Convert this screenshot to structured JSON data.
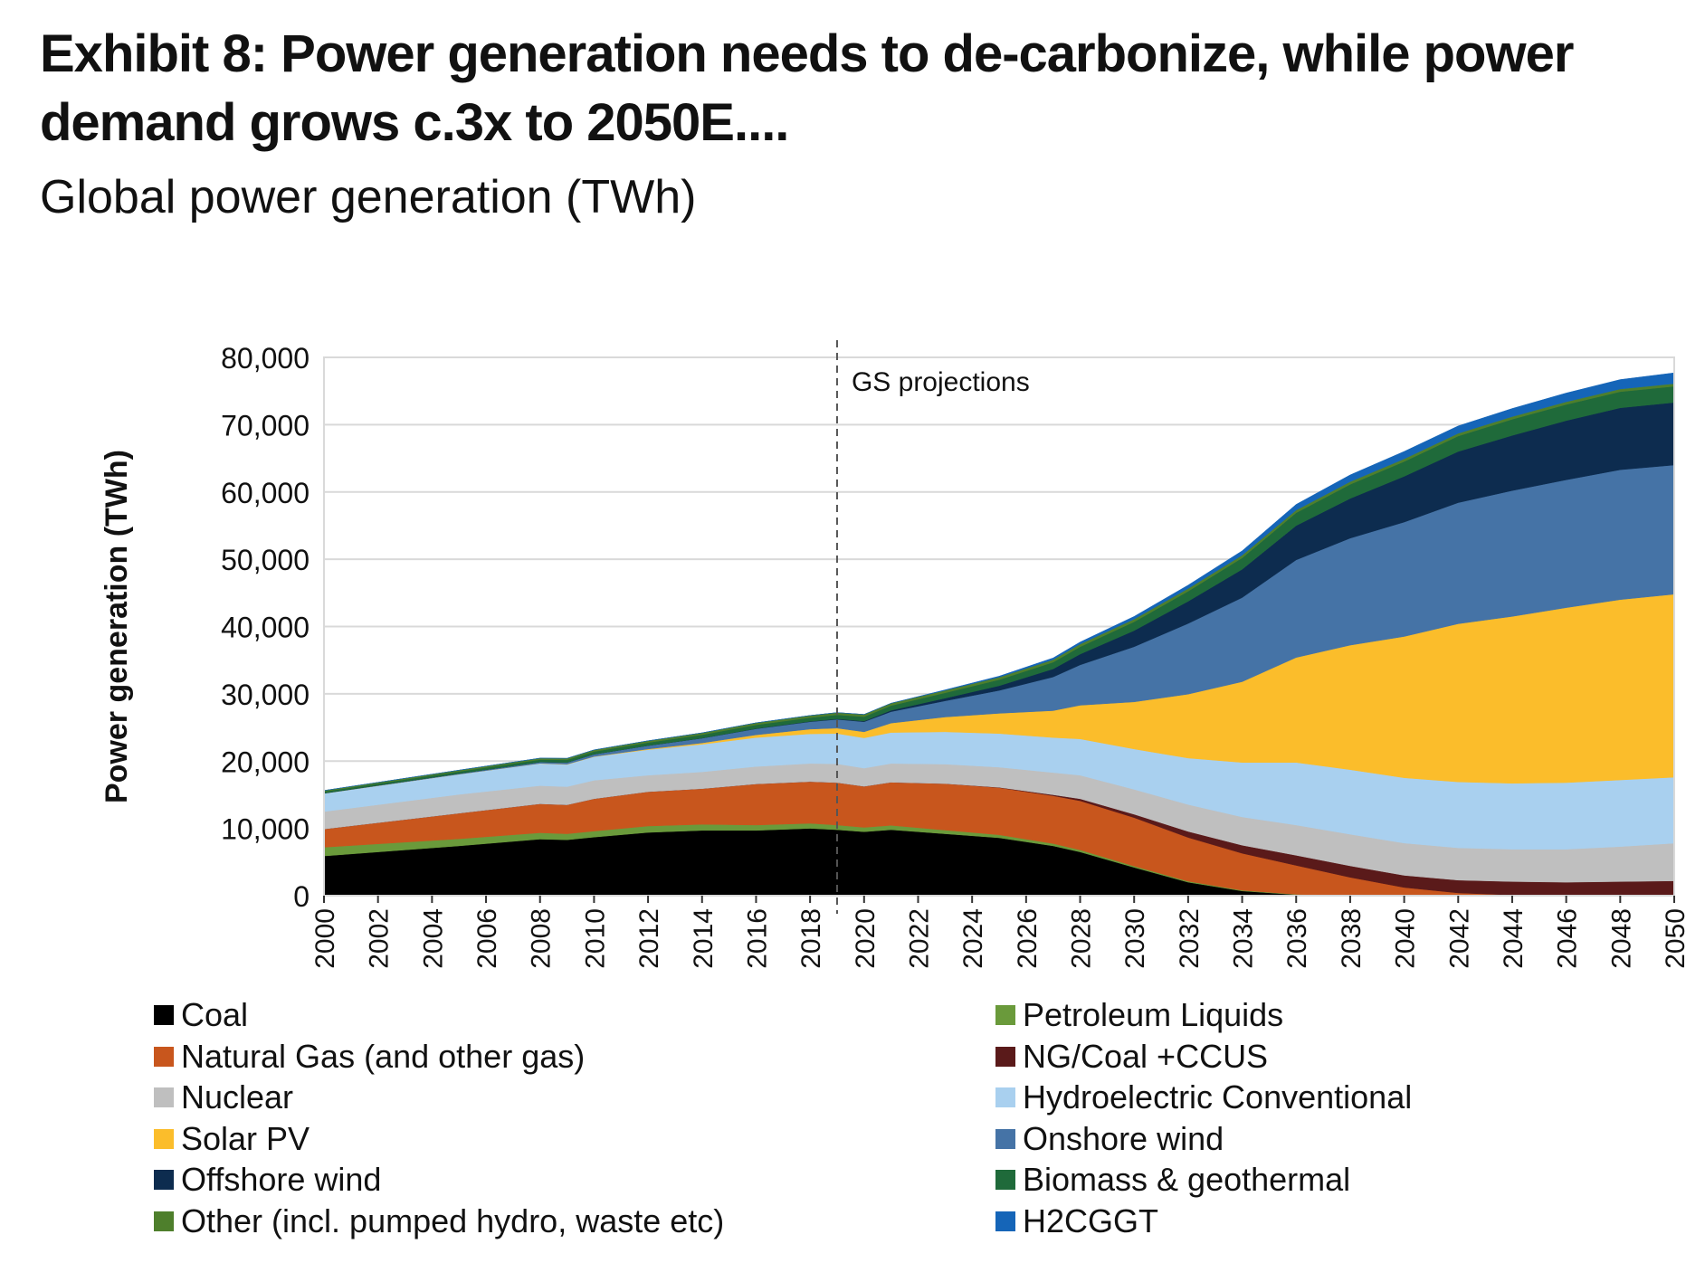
{
  "title": "Exhibit 8: Power generation needs to de-carbonize, while power demand grows c.3x to 2050E....",
  "subtitle": "Global power generation (TWh)",
  "chart_data": {
    "type": "area",
    "stacked": true,
    "ylabel": "Power generation (TWh)",
    "xlabel": "",
    "ylim": [
      0,
      80000
    ],
    "yticks": [
      0,
      10000,
      20000,
      30000,
      40000,
      50000,
      60000,
      70000,
      80000
    ],
    "ytick_labels": [
      "0",
      "10,000",
      "20,000",
      "30,000",
      "40,000",
      "50,000",
      "60,000",
      "70,000",
      "80,000"
    ],
    "xtick_labels": [
      "2000",
      "2002",
      "2004",
      "2006",
      "2008",
      "2010",
      "2012",
      "2014",
      "2016",
      "2018",
      "2020",
      "2022",
      "2024",
      "2026",
      "2028",
      "2030",
      "2032",
      "2034",
      "2036",
      "2038",
      "2040",
      "2042",
      "2044",
      "2046",
      "2048",
      "2050"
    ],
    "projection_start_year": 2019,
    "annotation": "GS projections",
    "grid": true,
    "legend_position": "bottom",
    "x": [
      2000,
      2005,
      2008,
      2009,
      2010,
      2012,
      2014,
      2016,
      2018,
      2019,
      2020,
      2021,
      2023,
      2025,
      2027,
      2028,
      2030,
      2032,
      2034,
      2036,
      2038,
      2040,
      2042,
      2044,
      2046,
      2048,
      2050
    ],
    "series": [
      {
        "name": "Coal",
        "color": "#000000",
        "values": [
          5900,
          7400,
          8400,
          8300,
          8700,
          9400,
          9700,
          9700,
          10000,
          9800,
          9500,
          9800,
          9200,
          8600,
          7400,
          6500,
          4200,
          2000,
          700,
          150,
          0,
          0,
          0,
          0,
          0,
          0,
          0
        ]
      },
      {
        "name": "Petroleum Liquids",
        "color": "#6a9a3b",
        "values": [
          1300,
          1050,
          950,
          900,
          900,
          950,
          900,
          800,
          750,
          700,
          650,
          650,
          550,
          450,
          350,
          300,
          200,
          150,
          100,
          50,
          30,
          20,
          10,
          0,
          0,
          0,
          0
        ]
      },
      {
        "name": "Natural Gas (and other gas)",
        "color": "#c8561d",
        "values": [
          2700,
          3800,
          4300,
          4300,
          4800,
          5100,
          5300,
          6100,
          6200,
          6300,
          6100,
          6400,
          6900,
          7000,
          7100,
          7300,
          7200,
          6500,
          5500,
          4300,
          2700,
          1200,
          400,
          100,
          0,
          0,
          0
        ]
      },
      {
        "name": "NG/Coal +CCUS",
        "color": "#5a1a1a",
        "values": [
          0,
          0,
          0,
          0,
          0,
          0,
          0,
          0,
          0,
          0,
          0,
          0,
          0,
          50,
          150,
          300,
          500,
          900,
          1200,
          1500,
          1700,
          1800,
          1900,
          2000,
          2000,
          2100,
          2200
        ]
      },
      {
        "name": "Nuclear",
        "color": "#bfbfbf",
        "values": [
          2600,
          2800,
          2700,
          2700,
          2750,
          2450,
          2500,
          2600,
          2700,
          2800,
          2700,
          2800,
          2900,
          3000,
          3300,
          3500,
          3700,
          4000,
          4200,
          4500,
          4700,
          4800,
          4800,
          4800,
          4900,
          5200,
          5600
        ]
      },
      {
        "name": "Hydroelectric Conventional",
        "color": "#a9d0ef",
        "values": [
          2700,
          3000,
          3300,
          3300,
          3500,
          3800,
          4100,
          4300,
          4400,
          4500,
          4500,
          4600,
          4800,
          5000,
          5200,
          5400,
          6000,
          6900,
          8100,
          9300,
          9600,
          9700,
          9800,
          9800,
          9900,
          9900,
          9800
        ]
      },
      {
        "name": "Solar PV",
        "color": "#fbbd2b",
        "values": [
          0,
          5,
          20,
          40,
          40,
          100,
          200,
          400,
          700,
          800,
          900,
          1400,
          2200,
          3000,
          4000,
          5000,
          7000,
          9500,
          12000,
          15600,
          18500,
          21000,
          23500,
          24800,
          26000,
          26800,
          27200
        ]
      },
      {
        "name": "Onshore wind",
        "color": "#4573a6",
        "values": [
          30,
          100,
          200,
          260,
          330,
          500,
          700,
          900,
          1100,
          1300,
          1500,
          1700,
          2400,
          3400,
          5000,
          6000,
          8200,
          10500,
          12500,
          14500,
          15900,
          17000,
          18000,
          18700,
          19000,
          19300,
          19200
        ]
      },
      {
        "name": "Offshore wind",
        "color": "#0d2c4f",
        "values": [
          0,
          0,
          0,
          5,
          5,
          10,
          20,
          40,
          60,
          80,
          100,
          200,
          400,
          700,
          1200,
          1600,
          2400,
          3300,
          4200,
          5100,
          5900,
          6800,
          7600,
          8200,
          8800,
          9200,
          9300
        ]
      },
      {
        "name": "Biomass & geothermal",
        "color": "#1f6a3a",
        "values": [
          250,
          300,
          350,
          380,
          400,
          450,
          500,
          550,
          550,
          600,
          650,
          700,
          800,
          900,
          1000,
          1100,
          1300,
          1500,
          1700,
          1900,
          2100,
          2200,
          2300,
          2400,
          2400,
          2400,
          2400
        ]
      },
      {
        "name": "Other (incl. pumped hydro, waste etc)",
        "color": "#4e7f2c",
        "values": [
          150,
          200,
          220,
          230,
          240,
          260,
          280,
          300,
          320,
          330,
          340,
          350,
          360,
          370,
          380,
          390,
          400,
          400,
          400,
          400,
          400,
          400,
          400,
          400,
          400,
          400,
          400
        ]
      },
      {
        "name": "H2CGGT",
        "color": "#1565b8",
        "values": [
          0,
          0,
          0,
          0,
          0,
          0,
          0,
          0,
          0,
          0,
          0,
          0,
          80,
          150,
          250,
          300,
          400,
          500,
          650,
          850,
          1000,
          1100,
          1100,
          1200,
          1300,
          1400,
          1600
        ]
      }
    ]
  }
}
